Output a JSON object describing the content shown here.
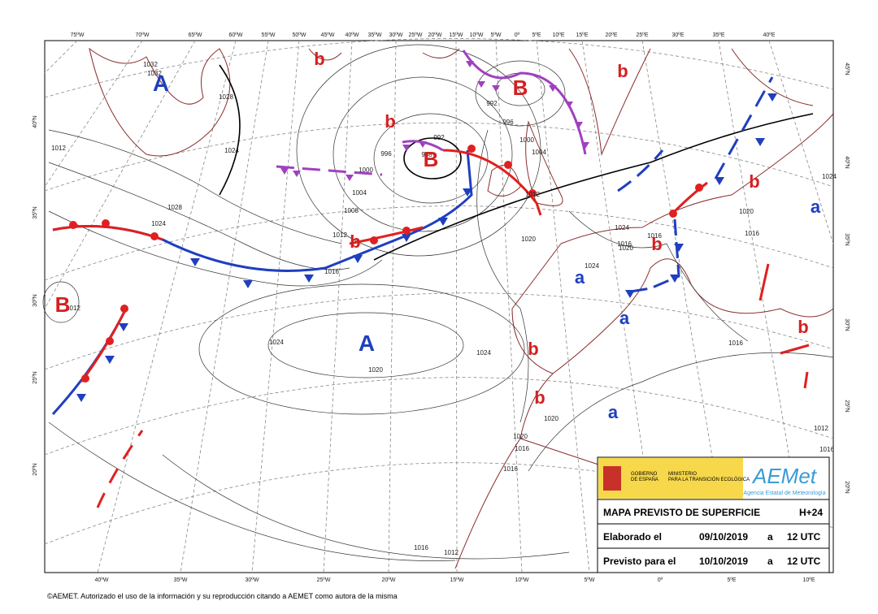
{
  "map": {
    "top_longitudes": [
      "75ºW",
      "70ºW",
      "65ºW",
      "60ºW",
      "55ºW",
      "50ºW",
      "45ºW",
      "40ºW",
      "35ºW",
      "30ºW",
      "25ºW",
      "20ºW",
      "15ºW",
      "10ºW",
      "5ºW",
      "0º",
      "5ºE",
      "10ºE",
      "15ºE",
      "20ºE",
      "25ºE",
      "30ºE",
      "35ºE",
      "40ºE"
    ],
    "bottom_longitudes": [
      "40ºW",
      "35ºW",
      "30ºW",
      "25ºW",
      "20ºW",
      "15ºW",
      "10ºW",
      "5ºW",
      "0º",
      "5ºE",
      "10ºE"
    ],
    "left_latitudes": [
      "40ºN",
      "35ºN",
      "30ºN",
      "25ºN",
      "20ºN"
    ],
    "right_latitudes": [
      "45ºN",
      "40ºN",
      "35ºN",
      "30ºN",
      "25ºN",
      "20ºN"
    ],
    "isobar_labels": [
      "1032",
      "1032",
      "1028",
      "1024",
      "1012",
      "1028",
      "1024",
      "996",
      "1000",
      "1004",
      "1008",
      "1012",
      "992",
      "988",
      "992",
      "996",
      "1000",
      "1004",
      "1012",
      "1016",
      "1020",
      "1024",
      "1024",
      "1016",
      "1024",
      "1020",
      "1024",
      "1020",
      "1020",
      "1016",
      "1016",
      "1016",
      "1012",
      "1012",
      "1016",
      "1020",
      "1016",
      "1016",
      "1024",
      "1012",
      "1016",
      "1020"
    ],
    "pressure_centers": [
      {
        "label": "A",
        "color": "#1f3fbf"
      },
      {
        "label": "A",
        "color": "#1f3fbf"
      },
      {
        "label": "B",
        "color": "#d42020"
      },
      {
        "label": "B",
        "color": "#d42020"
      },
      {
        "label": "B",
        "color": "#d42020"
      },
      {
        "label": "b",
        "color": "#d42020"
      },
      {
        "label": "b",
        "color": "#d42020"
      },
      {
        "label": "b",
        "color": "#d42020"
      },
      {
        "label": "b",
        "color": "#d42020"
      },
      {
        "label": "b",
        "color": "#d42020"
      },
      {
        "label": "b",
        "color": "#d42020"
      },
      {
        "label": "b",
        "color": "#d42020"
      },
      {
        "label": "b",
        "color": "#d42020"
      },
      {
        "label": "b",
        "color": "#d42020"
      },
      {
        "label": "a",
        "color": "#1f3fbf"
      },
      {
        "label": "a",
        "color": "#1f3fbf"
      },
      {
        "label": "a",
        "color": "#1f3fbf"
      },
      {
        "label": "a",
        "color": "#1f3fbf"
      }
    ]
  },
  "info_box": {
    "gov_line1": "GOBIERNO",
    "gov_line2": "DE ESPAÑA",
    "ministry_line1": "MINISTERIO",
    "ministry_line2": "PARA LA TRANSICIÓN ECOLÓGICA",
    "agency": "AEMet",
    "agency_subtitle": "Agencia Estatal de Meteorología",
    "title": "MAPA PREVISTO DE SUPERFICIE",
    "horizon": "H+24",
    "rows": [
      [
        "Elaborado el",
        "09/10/2019",
        "a",
        "12 UTC"
      ],
      [
        "Previsto para el",
        "10/10/2019",
        "a",
        "12 UTC"
      ]
    ]
  },
  "footer": "©AEMET. Autorizado el uso de la información y su reproducción citando a AEMET como autora de la misma"
}
